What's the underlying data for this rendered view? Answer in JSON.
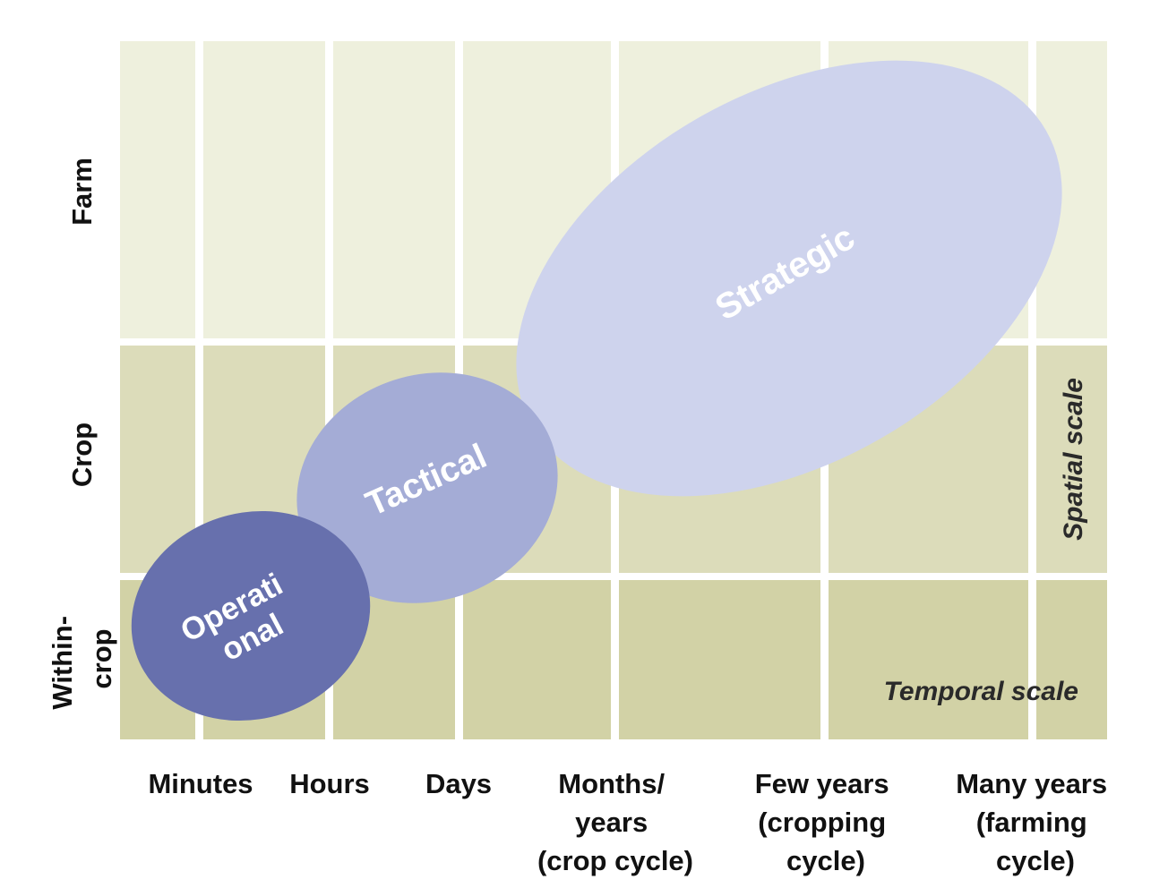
{
  "colors": {
    "farm_band": "#eef0dd",
    "crop_band": "#dcdcba",
    "within_band": "#d2d2a6",
    "grid_line": "#ffffff",
    "operational": "#6770ad",
    "tactical": "#a4acd6",
    "strategic": "#ced3ed",
    "label_text": "#111111"
  },
  "spatial_levels": [
    {
      "label_lines": [
        "Farm"
      ]
    },
    {
      "label_lines": [
        "Crop"
      ]
    },
    {
      "label_lines": [
        "Within-",
        "crop"
      ]
    }
  ],
  "temporal_levels": [
    {
      "label_lines": [
        "Minutes"
      ]
    },
    {
      "label_lines": [
        "Hours"
      ]
    },
    {
      "label_lines": [
        "Days"
      ]
    },
    {
      "label_lines": [
        "Months/",
        "years",
        "(crop cycle)"
      ]
    },
    {
      "label_lines": [
        "Few years",
        "(cropping",
        "cycle)"
      ]
    },
    {
      "label_lines": [
        "Many years",
        "(farming",
        "cycle)"
      ]
    }
  ],
  "zones": [
    {
      "name": "strategic",
      "label_lines": [
        "Strategic"
      ]
    },
    {
      "name": "tactical",
      "label_lines": [
        "Tactical"
      ]
    },
    {
      "name": "operational",
      "label_lines": [
        "Operati",
        "onal"
      ]
    }
  ],
  "axis_titles": {
    "spatial": "Spatial scale",
    "temporal": "Temporal scale"
  }
}
